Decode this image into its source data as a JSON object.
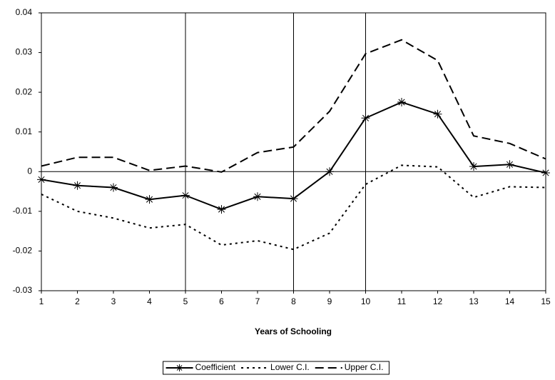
{
  "chart_data": {
    "type": "line",
    "x": [
      1,
      2,
      3,
      4,
      5,
      6,
      7,
      8,
      9,
      10,
      11,
      12,
      13,
      14,
      15
    ],
    "xlabel": "Years of Schooling",
    "xlim": [
      1,
      15
    ],
    "xticks": [
      1,
      2,
      3,
      4,
      5,
      6,
      7,
      8,
      9,
      10,
      11,
      12,
      13,
      14,
      15
    ],
    "ylim": [
      -0.03,
      0.04
    ],
    "yticks": [
      -0.03,
      -0.02,
      -0.01,
      0,
      0.01,
      0.02,
      0.03,
      0.04
    ],
    "vlines": [
      5,
      8,
      10
    ],
    "legend": "bottom",
    "series": [
      {
        "name": "Coefficient",
        "color": "#000000",
        "style": "solid",
        "marker": "star",
        "values": [
          -0.002,
          -0.0035,
          -0.004,
          -0.007,
          -0.006,
          -0.0095,
          -0.0063,
          -0.0068,
          0.0,
          0.0135,
          0.0175,
          0.0145,
          0.0013,
          0.0018,
          -0.0003
        ]
      },
      {
        "name": "Lower C.I.",
        "color": "#000000",
        "style": "dotted",
        "values": [
          -0.0057,
          -0.01,
          -0.0117,
          -0.0142,
          -0.0133,
          -0.0185,
          -0.0174,
          -0.0196,
          -0.0155,
          -0.0032,
          0.0016,
          0.0012,
          -0.0065,
          -0.0038,
          -0.004
        ]
      },
      {
        "name": "Upper C.I.",
        "color": "#000000",
        "style": "dashed",
        "values": [
          0.0014,
          0.0036,
          0.0036,
          0.0003,
          0.0014,
          -0.0001,
          0.0048,
          0.0062,
          0.0152,
          0.0297,
          0.0332,
          0.028,
          0.009,
          0.0071,
          0.0032
        ]
      }
    ]
  }
}
